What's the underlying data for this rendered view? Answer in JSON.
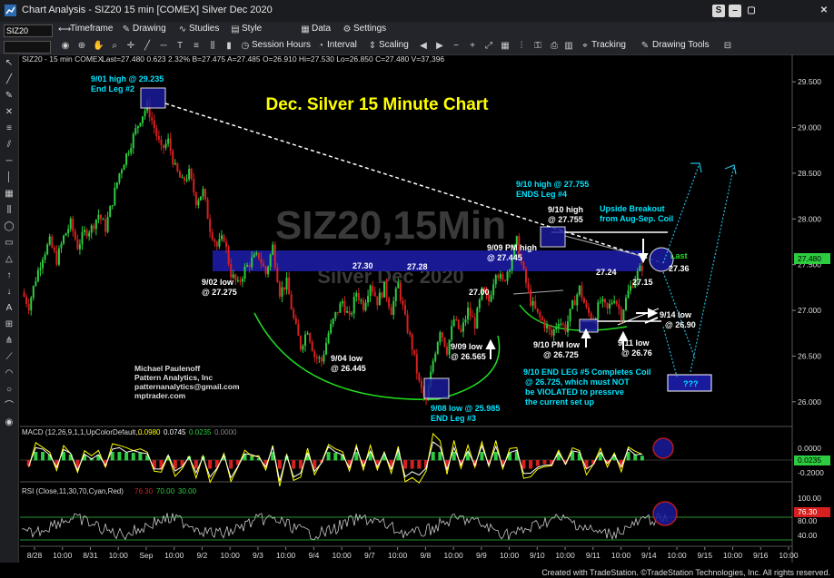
{
  "window": {
    "title": "Chart Analysis - SIZ20 15 min [COMEX] Silver Dec 2020",
    "buttons": [
      "S",
      "–",
      "▢",
      "✕"
    ]
  },
  "toolbar1": {
    "symbol": "SIZ20",
    "items": [
      "Timeframe",
      "Drawing",
      "Studies",
      "Style",
      "Data",
      "Settings"
    ]
  },
  "toolbar2": {
    "items": [
      "Session Hours",
      "Interval",
      "Scaling",
      "Tracking",
      "Drawing Tools"
    ]
  },
  "chart_data": {
    "type": "line",
    "symbol_header": "SIZ20 - 15 min COMEX",
    "ohlc_readout": "Last=27.480 0.623 2.32% B=27.475 A=27.485 O=26.910 Hi=27.530 Lo=26.850 C=27.480 V=37,396",
    "title": "Dec. Silver 15 Minute Chart",
    "watermark_symbol": "SIZ20,15Min",
    "watermark_name": "Silver Dec 2020",
    "y_ticks": [
      29.5,
      29.0,
      28.5,
      28.0,
      27.5,
      27.0,
      26.5,
      26.0
    ],
    "y_tick_labels": [
      "29.500",
      "29.000",
      "28.500",
      "28.000",
      "27.500",
      "27.000",
      "26.500",
      "26.000"
    ],
    "ylim": [
      25.75,
      29.7
    ],
    "last_price_label": "27.480",
    "x_tick_labels": [
      "8/28",
      "10:00",
      "8/31",
      "10:00",
      "Sep",
      "10:00",
      "9/2",
      "10:00",
      "9/3",
      "10:00",
      "9/4",
      "10:00",
      "9/7",
      "10:00",
      "9/8",
      "10:00",
      "9/9",
      "10:00",
      "9/10",
      "10:00",
      "9/11",
      "10:00",
      "9/14",
      "10:00",
      "9/15",
      "10:00",
      "9/16",
      "10:00"
    ],
    "price_path": [
      [
        0,
        27.2
      ],
      [
        2,
        27.05
      ],
      [
        4,
        27.35
      ],
      [
        6,
        27.6
      ],
      [
        8,
        27.75
      ],
      [
        10,
        27.55
      ],
      [
        12,
        27.8
      ],
      [
        14,
        27.95
      ],
      [
        16,
        27.7
      ],
      [
        18,
        27.85
      ],
      [
        20,
        27.9
      ],
      [
        22,
        28.05
      ],
      [
        24,
        27.9
      ],
      [
        26,
        28.2
      ],
      [
        28,
        28.5
      ],
      [
        30,
        28.7
      ],
      [
        32,
        28.9
      ],
      [
        34,
        29.1
      ],
      [
        36,
        29.235
      ],
      [
        38,
        29.0
      ],
      [
        40,
        28.75
      ],
      [
        42,
        28.85
      ],
      [
        44,
        28.55
      ],
      [
        46,
        28.4
      ],
      [
        48,
        28.5
      ],
      [
        50,
        28.2
      ],
      [
        52,
        28.3
      ],
      [
        54,
        27.9
      ],
      [
        56,
        27.7
      ],
      [
        58,
        27.8
      ],
      [
        60,
        27.4
      ],
      [
        62,
        27.275
      ],
      [
        64,
        27.45
      ],
      [
        66,
        27.55
      ],
      [
        68,
        27.6
      ],
      [
        70,
        27.4
      ],
      [
        72,
        27.7
      ],
      [
        74,
        27.2
      ],
      [
        76,
        27.3
      ],
      [
        78,
        26.9
      ],
      [
        80,
        26.6
      ],
      [
        82,
        26.8
      ],
      [
        84,
        26.5
      ],
      [
        86,
        26.445
      ],
      [
        88,
        26.75
      ],
      [
        90,
        26.95
      ],
      [
        92,
        27.1
      ],
      [
        94,
        26.9
      ],
      [
        96,
        27.2
      ],
      [
        98,
        27.05
      ],
      [
        100,
        27.3
      ],
      [
        102,
        27.1
      ],
      [
        104,
        27.25
      ],
      [
        106,
        27.0
      ],
      [
        108,
        27.28
      ],
      [
        110,
        26.9
      ],
      [
        112,
        26.6
      ],
      [
        114,
        26.2
      ],
      [
        116,
        25.985
      ],
      [
        118,
        26.45
      ],
      [
        120,
        26.8
      ],
      [
        122,
        26.565
      ],
      [
        124,
        26.9
      ],
      [
        126,
        26.75
      ],
      [
        128,
        27.0
      ],
      [
        130,
        26.85
      ],
      [
        132,
        27.2
      ],
      [
        134,
        27.1
      ],
      [
        136,
        27.445
      ],
      [
        138,
        27.3
      ],
      [
        140,
        27.5
      ],
      [
        142,
        27.755
      ],
      [
        144,
        27.4
      ],
      [
        146,
        27.1
      ],
      [
        148,
        26.95
      ],
      [
        150,
        26.85
      ],
      [
        152,
        26.725
      ],
      [
        154,
        26.9
      ],
      [
        156,
        26.8
      ],
      [
        158,
        27.05
      ],
      [
        160,
        27.24
      ],
      [
        162,
        27.0
      ],
      [
        164,
        26.9
      ],
      [
        166,
        27.1
      ],
      [
        168,
        27.0
      ],
      [
        170,
        27.15
      ],
      [
        172,
        26.95
      ],
      [
        174,
        27.2
      ],
      [
        176,
        27.36
      ],
      [
        178,
        27.48
      ]
    ],
    "x_span": [
      0,
      220
    ],
    "annotations": [
      {
        "text": "9/01 high @ 29.235",
        "x": 36,
        "y": 29.235
      },
      {
        "text": "End Leg #2"
      },
      {
        "text": "9/02 low"
      },
      {
        "text": "@ 27.275"
      },
      {
        "text": "9/04 low"
      },
      {
        "text": "@ 26.445"
      },
      {
        "text": "27.30"
      },
      {
        "text": "27.28"
      },
      {
        "text": "27.00"
      },
      {
        "text": "9/09 low"
      },
      {
        "text": "@ 26.565"
      },
      {
        "text": "9/08 low @ 25.985"
      },
      {
        "text": "END Leg #3"
      },
      {
        "text": "9/09 PM high"
      },
      {
        "text": "@ 27.445"
      },
      {
        "text": "9/10 high @ 27.755"
      },
      {
        "text": "ENDS Leg #4"
      },
      {
        "text": "9/10 high"
      },
      {
        "text": "@ 27.755"
      },
      {
        "text": "Upside Breakout"
      },
      {
        "text": "from Aug-Sep. Coil"
      },
      {
        "text": "Last"
      },
      {
        "text": "27.36"
      },
      {
        "text": "27.24"
      },
      {
        "text": "27.15"
      },
      {
        "text": "9/14 low"
      },
      {
        "text": "@ 26.90"
      },
      {
        "text": "9/10 PM low"
      },
      {
        "text": "@ 26.725"
      },
      {
        "text": "9/11 low"
      },
      {
        "text": "@ 26.76"
      },
      {
        "text": "9/10 END LEG #5 Completes Coil"
      },
      {
        "text": "@ 26.725, which must NOT"
      },
      {
        "text": "be VIOLATED to pressrve"
      },
      {
        "text": "the current set up"
      },
      {
        "text": "???"
      }
    ],
    "credits": [
      "Michael Paulenoff",
      "Pattern Analytics, Inc",
      "patternanalytics@gmail.com",
      "mptrader.com"
    ],
    "macd": {
      "label": "MACD (12,26,9,1,1,UpColorDefault,...",
      "values": [
        "0.0980",
        "0.0745",
        "0.0235",
        "0.0000"
      ],
      "y_tick_labels": [
        "0.0000",
        "-0.2000"
      ],
      "last_label": "0.0235"
    },
    "rsi": {
      "label": "RSI (Close,11,30,70,Cyan,Red)",
      "values": [
        "76.30",
        "70.00",
        "30.00"
      ],
      "y_tick_labels": [
        "100.00",
        "80.00",
        "40.00"
      ],
      "last_label": "76.30"
    },
    "colors": {
      "up_candle": "#2ecc40",
      "down_candle": "#d62020",
      "title": "#ffff00",
      "annotation": "#00e5ff",
      "zone": "#1a1a9c",
      "arc": "#22dd22",
      "rsi_line": "#c8c8c8"
    }
  },
  "footer": "Created with TradeStation. ©TradeStation Technologies, Inc. All rights reserved."
}
